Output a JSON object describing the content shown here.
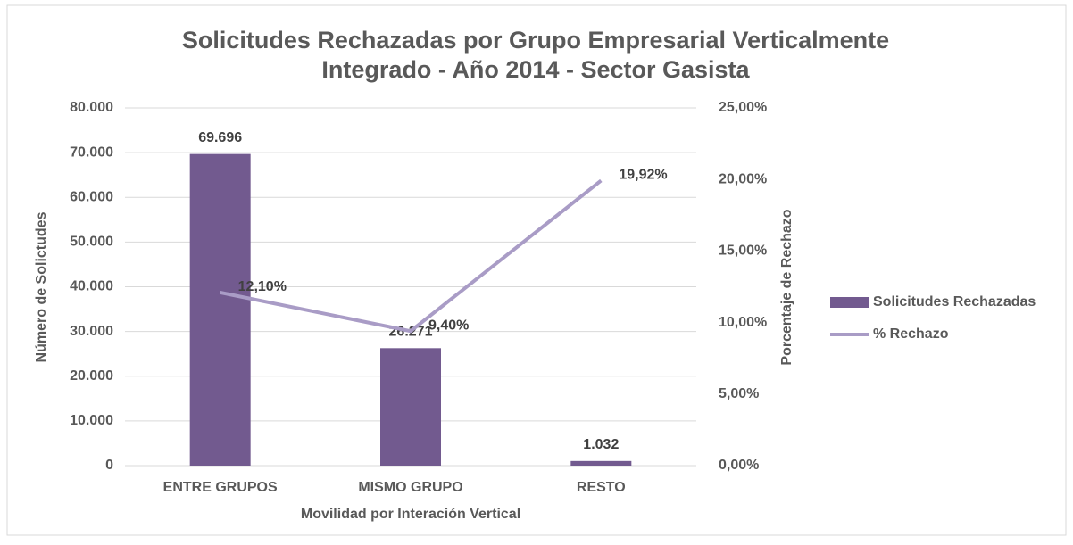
{
  "chart_data": {
    "type": "bar_line",
    "title": "Solicitudes Rechazadas por Grupo Empresarial Verticalmente",
    "subtitle": "Integrado - Año 2014 - Sector Gasista",
    "xlabel": "Movilidad por Interación Vertical",
    "ylabel": "Número de Solictudes",
    "y2label": "Porcentaje de Rechazo",
    "categories": [
      "ENTRE GRUPOS",
      "MISMO GRUPO",
      "RESTO"
    ],
    "series": [
      {
        "name": "Solicitudes Rechazadas",
        "type": "bar",
        "color": "#725a8f",
        "values": [
          69696,
          26271,
          1032
        ],
        "value_labels": [
          "69.696",
          "26.271",
          "1.032"
        ]
      },
      {
        "name": "% Rechazo",
        "type": "line",
        "axis": "y2",
        "color": "#a99cc6",
        "values": [
          12.1,
          9.4,
          19.92
        ],
        "value_labels": [
          "12,10%",
          "9,40%",
          "19,92%"
        ]
      }
    ],
    "ylim": [
      0,
      80000
    ],
    "yticks": [
      0,
      {
        "value": 10000,
        "label": "10.000"
      },
      {
        "value": 20000,
        "label": "20.000"
      },
      {
        "value": 30000,
        "label": "30.000"
      },
      {
        "value": 40000,
        "label": "40.000"
      },
      {
        "value": 50000,
        "label": "50.000"
      },
      {
        "value": 60000,
        "label": "60.000"
      },
      {
        "value": 70000,
        "label": "70.000"
      },
      {
        "value": 80000,
        "label": "80.000"
      }
    ],
    "y2lim": [
      0,
      25
    ],
    "y2ticks": [
      {
        "value": 0,
        "label": "0,00%"
      },
      {
        "value": 5,
        "label": "5,00%"
      },
      {
        "value": 10,
        "label": "10,00%"
      },
      {
        "value": 15,
        "label": "15,00%"
      },
      {
        "value": 20,
        "label": "20,00%"
      },
      {
        "value": 25,
        "label": "25,00%"
      }
    ],
    "grid": true,
    "legend": "right"
  }
}
